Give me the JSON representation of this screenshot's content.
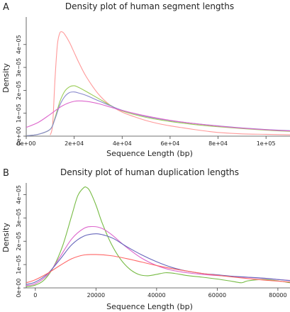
{
  "chart_data": [
    {
      "type": "line",
      "panel_label": "A",
      "title": "Density plot of human segment lengths",
      "xlabel": "Sequence Length (bp)",
      "ylabel": "Density",
      "xlim": [
        0,
        110000
      ],
      "ylim": [
        0,
        5.2e-05
      ],
      "x_ticks": [
        0,
        20000,
        40000,
        60000,
        80000,
        100000
      ],
      "x_tick_labels": [
        "0e+00",
        "2e+04",
        "4e+04",
        "6e+04",
        "8e+04",
        "1e+05"
      ],
      "y_ticks": [
        0,
        1e-05,
        2e-05,
        3e-05,
        4e-05
      ],
      "y_tick_labels": [
        "0e+00",
        "1e−05",
        "2e−05",
        "3e−05",
        "4e−05"
      ],
      "grid": false,
      "series": [
        {
          "color": "#ff9999",
          "x": [
            10000,
            11000,
            12000,
            13000,
            14000,
            15000,
            16000,
            18000,
            20000,
            22000,
            25000,
            30000,
            35000,
            40000,
            45000,
            50000,
            55000,
            60000,
            65000,
            70000,
            75000,
            80000,
            90000,
            100000,
            110000
          ],
          "y": [
            5e-07,
            5e-06,
            2.5e-05,
            4e-05,
            4.5e-05,
            4.55e-05,
            4.45e-05,
            4.1e-05,
            3.65e-05,
            3.2e-05,
            2.6e-05,
            1.85e-05,
            1.35e-05,
            1.05e-05,
            8.5e-06,
            6.8e-06,
            5.5e-06,
            4.5e-06,
            3.7e-06,
            2.9e-06,
            2.2e-06,
            1.6e-06,
            1e-06,
            8e-07,
            6e-07
          ]
        },
        {
          "color": "#99cc55",
          "x": [
            0,
            5000,
            10000,
            12000,
            14000,
            16000,
            18000,
            20000,
            22000,
            25000,
            30000,
            35000,
            40000,
            50000,
            60000,
            70000,
            80000,
            90000,
            100000,
            110000
          ],
          "y": [
            2e-07,
            8e-07,
            3e-06,
            8e-06,
            1.5e-05,
            1.95e-05,
            2.15e-05,
            2.2e-05,
            2.12e-05,
            1.95e-05,
            1.65e-05,
            1.35e-05,
            1.1e-05,
            8.2e-06,
            6.4e-06,
            5.1e-06,
            4.1e-06,
            3.3e-06,
            2.6e-06,
            2.1e-06
          ]
        },
        {
          "color": "#8888cc",
          "x": [
            0,
            5000,
            10000,
            12000,
            14000,
            16000,
            18000,
            20000,
            22000,
            25000,
            30000,
            35000,
            40000,
            50000,
            60000,
            70000,
            80000,
            90000,
            100000,
            110000
          ],
          "y": [
            2e-07,
            8e-07,
            3e-06,
            7.5e-06,
            1.35e-05,
            1.72e-05,
            1.9e-05,
            1.93e-05,
            1.88e-05,
            1.78e-05,
            1.55e-05,
            1.33e-05,
            1.13e-05,
            8.6e-06,
            6.8e-06,
            5.5e-06,
            4.5e-06,
            3.6e-06,
            2.9e-06,
            2.4e-06
          ]
        },
        {
          "color": "#dd66cc",
          "x": [
            0,
            5000,
            10000,
            15000,
            20000,
            25000,
            30000,
            35000,
            40000,
            50000,
            60000,
            70000,
            80000,
            90000,
            100000,
            110000
          ],
          "y": [
            3.8e-06,
            6e-06,
            9.5e-06,
            1.32e-05,
            1.52e-05,
            1.52e-05,
            1.42e-05,
            1.27e-05,
            1.12e-05,
            8.8e-06,
            6.9e-06,
            5.5e-06,
            4.4e-06,
            3.5e-06,
            2.8e-06,
            2.3e-06
          ]
        }
      ]
    },
    {
      "type": "line",
      "panel_label": "B",
      "title": "Density plot of human duplication lengths",
      "xlabel": "Sequence Length (bp)",
      "ylabel": "Density",
      "xlim": [
        -3000,
        84000
      ],
      "ylim": [
        0,
        4.5e-05
      ],
      "x_ticks": [
        0,
        20000,
        40000,
        60000,
        80000
      ],
      "x_tick_labels": [
        "0",
        "20000",
        "40000",
        "60000",
        "80000"
      ],
      "y_ticks": [
        0,
        1e-05,
        2e-05,
        3e-05,
        4e-05
      ],
      "y_tick_labels": [
        "0e+00",
        "1e−05",
        "2e−05",
        "3e−05",
        "4e−05"
      ],
      "grid": false,
      "series": [
        {
          "color": "#77bb44",
          "x": [
            -3000,
            0,
            3000,
            6000,
            9000,
            12000,
            14000,
            16000,
            17000,
            18000,
            20000,
            22000,
            25000,
            28000,
            31000,
            34000,
            37000,
            40000,
            43000,
            46000,
            50000,
            55000,
            60000,
            65000,
            68000,
            70000,
            75000,
            80000,
            84000
          ],
          "y": [
            5e-07,
            1.2e-06,
            3.5e-06,
            9e-06,
            1.8e-05,
            3.1e-05,
            3.95e-05,
            4.3e-05,
            4.3e-05,
            4.15e-05,
            3.55e-05,
            2.8e-05,
            1.9e-05,
            1.25e-05,
            8.2e-06,
            5.8e-06,
            5.2e-06,
            5.8e-06,
            6.5e-06,
            6.2e-06,
            5.3e-06,
            4.6e-06,
            3.8e-06,
            2.8e-06,
            2.2e-06,
            3e-06,
            3.6e-06,
            3e-06,
            2.2e-06
          ]
        },
        {
          "color": "#dd66cc",
          "x": [
            -3000,
            0,
            4000,
            8000,
            12000,
            16000,
            19000,
            22000,
            25000,
            30000,
            35000,
            40000,
            45000,
            50000,
            55000,
            60000,
            65000,
            70000,
            75000,
            80000,
            84000
          ],
          "y": [
            1e-06,
            1.8e-06,
            5.5e-06,
            1.3e-05,
            2.1e-05,
            2.55e-05,
            2.63e-05,
            2.55e-05,
            2.3e-05,
            1.75e-05,
            1.28e-05,
            9.6e-06,
            7.6e-06,
            6.5e-06,
            5.8e-06,
            5.3e-06,
            4.9e-06,
            4.5e-06,
            4.1e-06,
            3.6e-06,
            3.2e-06
          ]
        },
        {
          "color": "#6666bb",
          "x": [
            -3000,
            0,
            4000,
            8000,
            12000,
            16000,
            20000,
            23000,
            26000,
            30000,
            35000,
            40000,
            45000,
            50000,
            55000,
            60000,
            65000,
            70000,
            75000,
            80000,
            84000
          ],
          "y": [
            1.5e-06,
            2.5e-06,
            6e-06,
            1.2e-05,
            1.85e-05,
            2.22e-05,
            2.32e-05,
            2.25e-05,
            2.1e-05,
            1.78e-05,
            1.42e-05,
            1.12e-05,
            8.8e-06,
            7.2e-06,
            6.2e-06,
            5.6e-06,
            5e-06,
            4.6e-06,
            4.2e-06,
            3.6e-06,
            3.1e-06
          ]
        },
        {
          "color": "#ff6666",
          "x": [
            -3000,
            0,
            4000,
            8000,
            12000,
            16000,
            20000,
            25000,
            30000,
            35000,
            40000,
            45000,
            50000,
            55000,
            60000,
            65000,
            70000,
            75000,
            80000,
            84000
          ],
          "y": [
            2.2e-06,
            3.5e-06,
            6.2e-06,
            9.5e-06,
            1.25e-05,
            1.41e-05,
            1.43e-05,
            1.38e-05,
            1.26e-05,
            1.11e-05,
            9.6e-06,
            8.3e-06,
            7.2e-06,
            6.2e-06,
            5.4e-06,
            4.7e-06,
            4e-06,
            3.4e-06,
            2.9e-06,
            2.5e-06
          ]
        }
      ]
    }
  ]
}
